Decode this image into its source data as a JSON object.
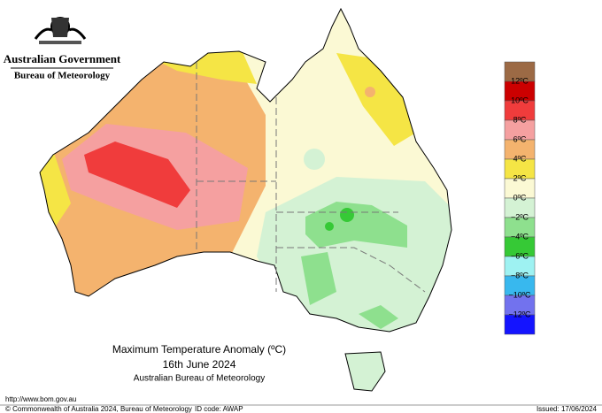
{
  "header": {
    "line1": "Australian Government",
    "line2": "Bureau of Meteorology"
  },
  "title": {
    "line1": "Maximum Temperature Anomaly (ºC)",
    "line2": "16th June 2024",
    "line3": "Australian Bureau of Meteorology"
  },
  "legend": {
    "colors": [
      "#9c6a45",
      "#cc0000",
      "#f03c3c",
      "#f5a0a0",
      "#f4b36e",
      "#f5e545",
      "#fbf9d4",
      "#d4f2d4",
      "#8ee08e",
      "#36c936",
      "#9ef2f2",
      "#38b8ee",
      "#7272ee",
      "#1414ff"
    ],
    "labels": [
      "12ºC",
      "10ºC",
      "8ºC",
      "6ºC",
      "4ºC",
      "2ºC",
      "0ºC",
      "−2ºC",
      "−4ºC",
      "−6ºC",
      "−8ºC",
      "−10ºC",
      "−12ºC"
    ]
  },
  "footer": {
    "url": "http://www.bom.gov.au",
    "copyright": "© Commonwealth of Australia 2024, Bureau of Meteorology",
    "id": "ID code: AWAP",
    "issued": "Issued: 17/06/2024"
  }
}
